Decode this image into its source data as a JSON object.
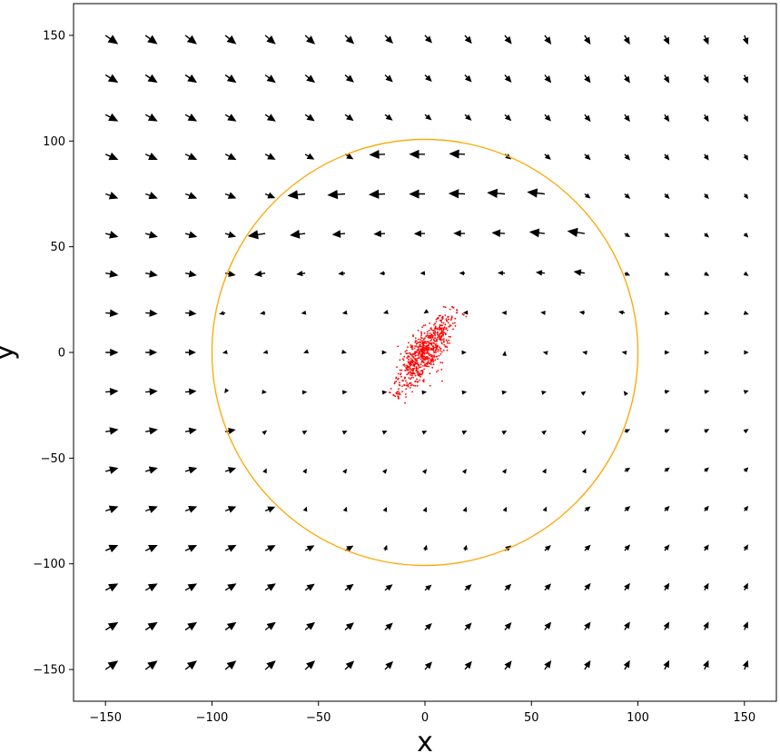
{
  "chart_data": {
    "type": "quiver",
    "title": "",
    "xlabel": "x",
    "ylabel": "y",
    "xlim": [
      -165,
      165
    ],
    "ylim": [
      -165,
      165
    ],
    "xticks": [
      -150,
      -100,
      -50,
      0,
      50,
      100,
      150
    ],
    "yticks": [
      -150,
      -100,
      -50,
      0,
      50,
      100,
      150
    ],
    "xtick_labels": [
      "−150",
      "−100",
      "−50",
      "0",
      "50",
      "100",
      "150"
    ],
    "ytick_labels": [
      "−150",
      "−100",
      "−50",
      "0",
      "50",
      "100",
      "150"
    ],
    "grid": false,
    "arrow_color": "#000000",
    "circle": {
      "center": [
        0,
        0
      ],
      "radius": 100,
      "color": "#ffa500"
    },
    "scatter": {
      "color": "#ff0000",
      "description_center": [
        0,
        0
      ],
      "count": 700,
      "extent_major": 25,
      "extent_minor": 4,
      "angle_deg": 55
    },
    "grid_x": [
      -150,
      -131.25,
      -112.5,
      -93.75,
      -75,
      -56.25,
      -37.5,
      -18.75,
      0,
      18.75,
      37.5,
      56.25,
      75,
      93.75,
      112.5,
      131.25,
      150
    ],
    "grid_y": [
      150,
      131.25,
      112.5,
      93.75,
      75,
      56.25,
      37.5,
      18.75,
      0,
      -18.75,
      -37.5,
      -56.25,
      -75,
      -93.75,
      -112.5,
      -131.25,
      -150
    ]
  }
}
